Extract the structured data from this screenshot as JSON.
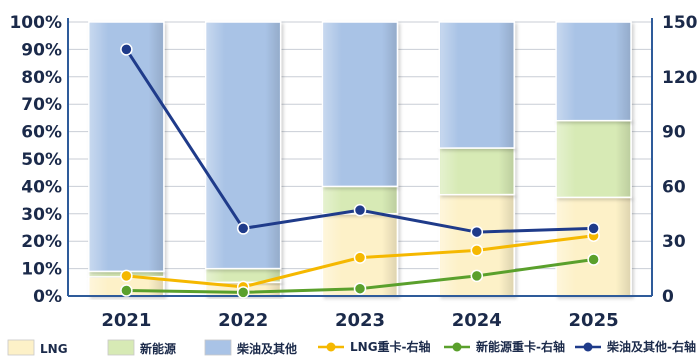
{
  "chart_data": {
    "type": "bar",
    "categories": [
      "2021",
      "2022",
      "2023",
      "2024",
      "2025"
    ],
    "stack_percent": true,
    "series": [
      {
        "name": "LNG",
        "kind": "bar",
        "axis": "left",
        "values": [
          7,
          5,
          30,
          37,
          36
        ],
        "color": "#fdf1c8"
      },
      {
        "name": "新能源",
        "kind": "bar",
        "axis": "left",
        "values": [
          2,
          5,
          10,
          17,
          28
        ],
        "color": "#d7eab5"
      },
      {
        "name": "柴油及其他",
        "kind": "bar",
        "axis": "left",
        "values": [
          91,
          90,
          60,
          46,
          36
        ],
        "color": "#a9c3e6"
      },
      {
        "name": "LNG重卡-右轴",
        "kind": "line",
        "axis": "right",
        "values": [
          11,
          5,
          21,
          25,
          33
        ],
        "color": "#f5b800"
      },
      {
        "name": "新能源重卡-右轴",
        "kind": "line",
        "axis": "right",
        "values": [
          3,
          2,
          4,
          11,
          20
        ],
        "color": "#5aa02c"
      },
      {
        "name": "柴油及其他-右轴",
        "kind": "line",
        "axis": "right",
        "values": [
          135,
          37,
          47,
          35,
          37
        ],
        "color": "#1f3b8a"
      }
    ],
    "left_axis": {
      "ticks": [
        "0%",
        "10%",
        "20%",
        "30%",
        "40%",
        "50%",
        "60%",
        "70%",
        "80%",
        "90%",
        "100%"
      ],
      "ylim": [
        0,
        100
      ]
    },
    "right_axis": {
      "ticks": [
        "0",
        "30",
        "60",
        "90",
        "120",
        "150"
      ],
      "ylim": [
        0,
        150
      ]
    },
    "legend_position": "bottom"
  }
}
